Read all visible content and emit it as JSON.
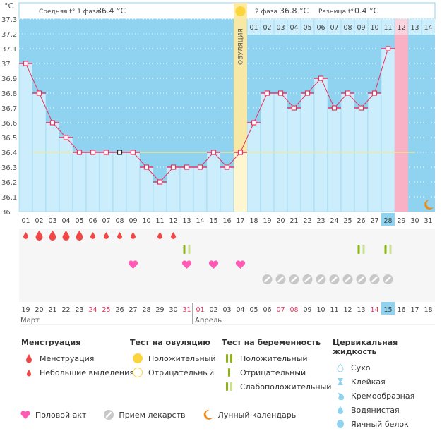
{
  "header": {
    "unit": "°C",
    "phase1_label": "Средняя t° 1 фаза",
    "phase1_value": "36.4 °C",
    "phase2_label": "2 фаза",
    "phase2_value": "36.8 °C",
    "diff_label": "Разница t°",
    "diff_value": "0.4 °C",
    "ovulation_label": "ОВУЛЯЦИЯ"
  },
  "colors": {
    "sky": "#8fd3f0",
    "bar": "#ccedfb",
    "line": "#e8335f",
    "ovulation": "#fdeaa0",
    "ovulation_sun": "#fcd43c",
    "period_pink": "#f9b1c6",
    "coverline": "#f7e98e",
    "weekend": "#e8335f",
    "today": "#8fd3f0",
    "blood": "#f24646",
    "heart": "#ff5bb4",
    "pill": "#c8c8c8",
    "test_dark": "#8cb414",
    "test_light": "#c9e08e",
    "moon": "#f08c14"
  },
  "chart_data": {
    "type": "line",
    "title": "",
    "ylabel": "°C",
    "ylim": [
      36.0,
      37.3
    ],
    "yticks": [
      "36",
      "36.1",
      "36.2",
      "36.3",
      "36.4",
      "36.5",
      "36.6",
      "36.7",
      "36.8",
      "36.9",
      "37",
      "37.1",
      "37.2",
      "37.3"
    ],
    "cycle_days": [
      "01",
      "02",
      "03",
      "04",
      "05",
      "06",
      "07",
      "08",
      "09",
      "10",
      "11",
      "12",
      "13",
      "14",
      "15",
      "16",
      "17",
      "18",
      "19",
      "20",
      "21",
      "22",
      "23",
      "24",
      "25",
      "26",
      "27",
      "28",
      "29",
      "30",
      "31"
    ],
    "top_post_ovulation_days": [
      "01",
      "02",
      "03",
      "04",
      "05",
      "06",
      "07",
      "08",
      "09",
      "10",
      "11",
      "12",
      "13",
      "14"
    ],
    "temperatures": [
      37.0,
      36.8,
      36.6,
      36.5,
      36.4,
      36.4,
      36.4,
      36.4,
      36.4,
      36.3,
      36.2,
      36.3,
      36.3,
      36.3,
      36.4,
      36.3,
      36.4,
      36.6,
      36.8,
      36.8,
      36.7,
      36.8,
      36.9,
      36.7,
      36.8,
      36.7,
      36.8,
      37.1,
      null,
      null,
      null
    ],
    "coverline": 36.4,
    "ovulation_day": 17,
    "highlight_day": 29,
    "today_day": 28,
    "moon_day": 31,
    "calendar_dates": [
      "19",
      "20",
      "21",
      "22",
      "23",
      "24",
      "25",
      "26",
      "27",
      "28",
      "29",
      "30",
      "31",
      "01",
      "02",
      "03",
      "04",
      "05",
      "06",
      "07",
      "08",
      "09",
      "10",
      "11",
      "12",
      "13",
      "14",
      "15",
      "16",
      "17",
      "18"
    ],
    "weekend_dates_idx": [
      5,
      6,
      12,
      13,
      19,
      20,
      26
    ],
    "months": [
      {
        "label": "Март",
        "start_idx": 0
      },
      {
        "label": "Апрель",
        "start_idx": 13
      }
    ],
    "menstruation": [
      {
        "day": 1,
        "type": "small"
      },
      {
        "day": 2,
        "type": "large"
      },
      {
        "day": 3,
        "type": "large"
      },
      {
        "day": 4,
        "type": "large"
      },
      {
        "day": 5,
        "type": "large"
      },
      {
        "day": 6,
        "type": "small"
      },
      {
        "day": 7,
        "type": "small"
      },
      {
        "day": 8,
        "type": "small"
      },
      {
        "day": 9,
        "type": "small"
      },
      {
        "day": 11,
        "type": "small"
      },
      {
        "day": 12,
        "type": "small"
      }
    ],
    "pregnancy_tests": [
      {
        "day": 13,
        "result": "weak"
      },
      {
        "day": 26,
        "result": "weak"
      },
      {
        "day": 28,
        "result": "weak"
      }
    ],
    "intercourse_days": [
      9,
      13,
      15,
      17
    ],
    "medication_days": [
      19,
      20,
      21,
      22,
      23,
      24,
      25,
      26,
      27,
      28
    ]
  },
  "legend": {
    "menstruation": {
      "title": "Менструация",
      "items": [
        "Менструация",
        "Небольшие выделения"
      ]
    },
    "ovulation_test": {
      "title": "Тест на овуляцию",
      "items": [
        "Положительный",
        "Отрицательный"
      ]
    },
    "pregnancy_test": {
      "title": "Тест на беременность",
      "items": [
        "Положительный",
        "Отрицательный",
        "Слабоположительный"
      ]
    },
    "cervical": {
      "title": "Цервикальная жидкость",
      "items": [
        "Сухо",
        "Клейкая",
        "Кремообразная",
        "Водянистая",
        "Яичный белок"
      ]
    },
    "bottom": [
      "Половой акт",
      "Прием лекарств",
      "Лунный календарь"
    ]
  }
}
